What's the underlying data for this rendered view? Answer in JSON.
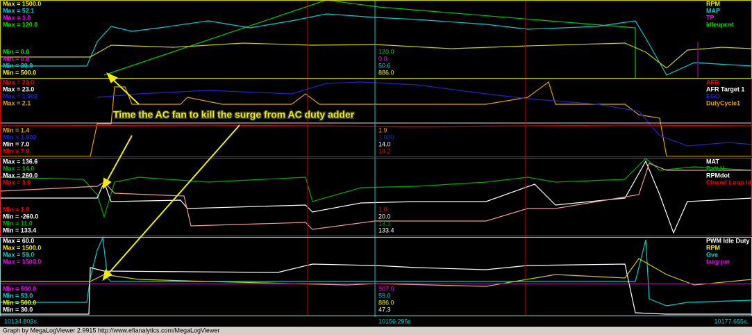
{
  "panels": [
    {
      "max_labels": [
        "Max = 1500.0",
        "Max = 52.1",
        "Max = 1.0",
        "Max = 120.0"
      ],
      "min_labels": [
        "Min = 0.0",
        "Min = 0.0",
        "Min = 30.9",
        "Min = 500.0"
      ],
      "channels": [
        "RPM",
        "MAP",
        "TP",
        "idleupcnt"
      ],
      "cursor_values": [
        "120.0",
        "0.0",
        "50.6",
        "886.0"
      ]
    },
    {
      "max_labels": [
        "Max = 23.0",
        "Max = 23.0",
        "Max = 1.902",
        "Max = 2.1"
      ],
      "min_labels": [
        "Min = 1.4",
        "Min = 1.902",
        "Min = 7.0",
        "Min = 7.0"
      ],
      "channels": [
        "AFR",
        "AFR Target 1",
        "EGO",
        "DutyCycle1"
      ],
      "cursor_values": [
        "1.9",
        "1.000",
        "14.0",
        "14.2"
      ]
    },
    {
      "max_labels": [
        "Max = 136.6",
        "Max = 14.0",
        "Max = 260.0",
        "Max = 1.0"
      ],
      "min_labels": [
        "Min = 1.0",
        "Min = -260.0",
        "Min = 11.0",
        "Min = 133.4"
      ],
      "channels": [
        "MAT",
        "Batt V",
        "RPMdot",
        "Closed Loop Idle"
      ],
      "cursor_values": [
        "1.0",
        "20.0",
        "13.1",
        "133.4"
      ]
    },
    {
      "max_labels": [
        "Max = 60.0",
        "Max = 1500.0",
        "Max = 59.0",
        "Max = 1500.0"
      ],
      "min_labels": [
        "Min = 500.0",
        "Min = 53.0",
        "Min = 500.0",
        "Min = 30.0"
      ],
      "channels": [
        "PWM Idle Duty",
        "RPM",
        "Gve",
        "targrpm"
      ],
      "cursor_values": [
        "907.0",
        "59.0",
        "886.0",
        "47.3"
      ]
    }
  ],
  "annotation": "Time the AC fan to kill the surge from AC duty adder",
  "time_axis": {
    "start": "10134.803s.",
    "cursor": "10156.295s",
    "end": "10177.655s."
  },
  "footer": "Graph by MegaLogViewer 2.9915 http://www.efianalytics.com/MegaLogViewer"
}
